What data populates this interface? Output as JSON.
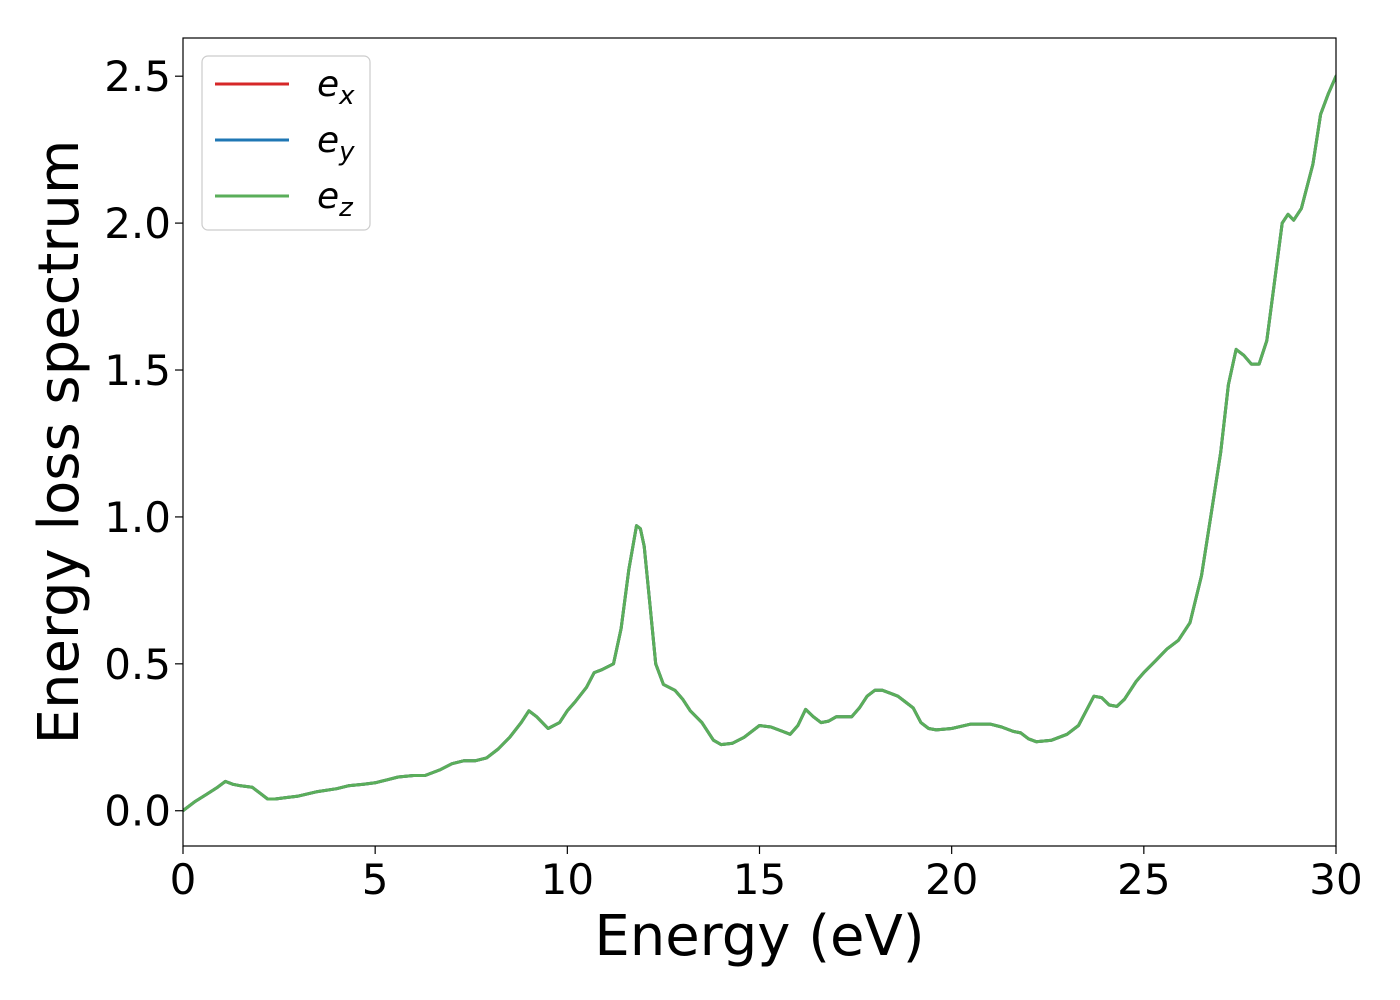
{
  "chart_data": {
    "type": "line",
    "xlabel": "Energy (eV)",
    "ylabel": "Energy loss spectrum",
    "xlim": [
      0,
      30
    ],
    "ylim": [
      -0.12,
      2.63
    ],
    "xticks": [
      0,
      5,
      10,
      15,
      20,
      25,
      30
    ],
    "xtick_labels": [
      "0",
      "5",
      "10",
      "15",
      "20",
      "25",
      "30"
    ],
    "yticks": [
      0.0,
      0.5,
      1.0,
      1.5,
      2.0,
      2.5
    ],
    "ytick_labels": [
      "0.0",
      "0.5",
      "1.0",
      "1.5",
      "2.0",
      "2.5"
    ],
    "grid": false,
    "legend_position": "top-left",
    "x": [
      0,
      0.3,
      0.6,
      0.9,
      1.1,
      1.3,
      1.5,
      1.8,
      2.0,
      2.2,
      2.4,
      2.7,
      3.0,
      3.5,
      4.0,
      4.3,
      4.7,
      5.0,
      5.3,
      5.6,
      6.0,
      6.3,
      6.7,
      7.0,
      7.3,
      7.6,
      7.9,
      8.2,
      8.5,
      8.8,
      9.0,
      9.2,
      9.5,
      9.8,
      10.0,
      10.2,
      10.5,
      10.7,
      10.9,
      11.2,
      11.4,
      11.6,
      11.8,
      11.9,
      12.0,
      12.15,
      12.3,
      12.5,
      12.8,
      13.0,
      13.2,
      13.5,
      13.8,
      14.0,
      14.3,
      14.6,
      15.0,
      15.3,
      15.6,
      15.8,
      16.0,
      16.2,
      16.4,
      16.6,
      16.8,
      17.0,
      17.2,
      17.4,
      17.6,
      17.8,
      18.0,
      18.2,
      18.4,
      18.6,
      18.8,
      19.0,
      19.2,
      19.4,
      19.6,
      20.0,
      20.5,
      21.0,
      21.3,
      21.6,
      21.8,
      22.0,
      22.2,
      22.6,
      23.0,
      23.3,
      23.5,
      23.7,
      23.9,
      24.1,
      24.3,
      24.5,
      24.8,
      25.0,
      25.3,
      25.6,
      25.9,
      26.2,
      26.5,
      26.8,
      27.0,
      27.2,
      27.4,
      27.6,
      27.8,
      28.0,
      28.2,
      28.4,
      28.6,
      28.75,
      28.9,
      29.1,
      29.4,
      29.6,
      29.8,
      30.0
    ],
    "series": [
      {
        "name": "e_x",
        "color": "#d62728",
        "values": [
          0.0,
          0.03,
          0.055,
          0.08,
          0.1,
          0.09,
          0.085,
          0.08,
          0.06,
          0.04,
          0.04,
          0.045,
          0.05,
          0.065,
          0.075,
          0.085,
          0.09,
          0.095,
          0.105,
          0.115,
          0.12,
          0.12,
          0.14,
          0.16,
          0.17,
          0.17,
          0.18,
          0.21,
          0.25,
          0.3,
          0.34,
          0.32,
          0.28,
          0.3,
          0.34,
          0.37,
          0.42,
          0.47,
          0.48,
          0.5,
          0.62,
          0.82,
          0.97,
          0.96,
          0.9,
          0.7,
          0.5,
          0.43,
          0.41,
          0.38,
          0.34,
          0.3,
          0.24,
          0.225,
          0.23,
          0.25,
          0.29,
          0.285,
          0.27,
          0.26,
          0.29,
          0.345,
          0.32,
          0.3,
          0.305,
          0.32,
          0.32,
          0.32,
          0.35,
          0.39,
          0.41,
          0.41,
          0.4,
          0.39,
          0.37,
          0.35,
          0.3,
          0.28,
          0.275,
          0.28,
          0.295,
          0.295,
          0.285,
          0.27,
          0.265,
          0.245,
          0.235,
          0.24,
          0.26,
          0.29,
          0.34,
          0.39,
          0.385,
          0.36,
          0.355,
          0.38,
          0.44,
          0.47,
          0.51,
          0.55,
          0.58,
          0.64,
          0.8,
          1.05,
          1.22,
          1.45,
          1.57,
          1.55,
          1.52,
          1.52,
          1.6,
          1.8,
          2.0,
          2.03,
          2.01,
          2.05,
          2.2,
          2.37,
          2.44,
          2.5
        ]
      },
      {
        "name": "e_y",
        "color": "#1f77b4",
        "values": [
          0.0,
          0.03,
          0.055,
          0.08,
          0.1,
          0.09,
          0.085,
          0.08,
          0.06,
          0.04,
          0.04,
          0.045,
          0.05,
          0.065,
          0.075,
          0.085,
          0.09,
          0.095,
          0.105,
          0.115,
          0.12,
          0.12,
          0.14,
          0.16,
          0.17,
          0.17,
          0.18,
          0.21,
          0.25,
          0.3,
          0.34,
          0.32,
          0.28,
          0.3,
          0.34,
          0.37,
          0.42,
          0.47,
          0.48,
          0.5,
          0.62,
          0.82,
          0.97,
          0.96,
          0.9,
          0.7,
          0.5,
          0.43,
          0.41,
          0.38,
          0.34,
          0.3,
          0.24,
          0.225,
          0.23,
          0.25,
          0.29,
          0.285,
          0.27,
          0.26,
          0.29,
          0.345,
          0.32,
          0.3,
          0.305,
          0.32,
          0.32,
          0.32,
          0.35,
          0.39,
          0.41,
          0.41,
          0.4,
          0.39,
          0.37,
          0.35,
          0.3,
          0.28,
          0.275,
          0.28,
          0.295,
          0.295,
          0.285,
          0.27,
          0.265,
          0.245,
          0.235,
          0.24,
          0.26,
          0.29,
          0.34,
          0.39,
          0.385,
          0.36,
          0.355,
          0.38,
          0.44,
          0.47,
          0.51,
          0.55,
          0.58,
          0.64,
          0.8,
          1.05,
          1.22,
          1.45,
          1.57,
          1.55,
          1.52,
          1.52,
          1.6,
          1.8,
          2.0,
          2.03,
          2.01,
          2.05,
          2.2,
          2.37,
          2.44,
          2.5
        ]
      },
      {
        "name": "e_z",
        "color": "#5aae5a",
        "values": [
          0.0,
          0.03,
          0.055,
          0.08,
          0.1,
          0.09,
          0.085,
          0.08,
          0.06,
          0.04,
          0.04,
          0.045,
          0.05,
          0.065,
          0.075,
          0.085,
          0.09,
          0.095,
          0.105,
          0.115,
          0.12,
          0.12,
          0.14,
          0.16,
          0.17,
          0.17,
          0.18,
          0.21,
          0.25,
          0.3,
          0.34,
          0.32,
          0.28,
          0.3,
          0.34,
          0.37,
          0.42,
          0.47,
          0.48,
          0.5,
          0.62,
          0.82,
          0.97,
          0.96,
          0.9,
          0.7,
          0.5,
          0.43,
          0.41,
          0.38,
          0.34,
          0.3,
          0.24,
          0.225,
          0.23,
          0.25,
          0.29,
          0.285,
          0.27,
          0.26,
          0.29,
          0.345,
          0.32,
          0.3,
          0.305,
          0.32,
          0.32,
          0.32,
          0.35,
          0.39,
          0.41,
          0.41,
          0.4,
          0.39,
          0.37,
          0.35,
          0.3,
          0.28,
          0.275,
          0.28,
          0.295,
          0.295,
          0.285,
          0.27,
          0.265,
          0.245,
          0.235,
          0.24,
          0.26,
          0.29,
          0.34,
          0.39,
          0.385,
          0.36,
          0.355,
          0.38,
          0.44,
          0.47,
          0.51,
          0.55,
          0.58,
          0.64,
          0.8,
          1.05,
          1.22,
          1.45,
          1.57,
          1.55,
          1.52,
          1.52,
          1.6,
          1.8,
          2.0,
          2.03,
          2.01,
          2.05,
          2.2,
          2.37,
          2.44,
          2.5
        ]
      }
    ],
    "legend": [
      {
        "base": "e",
        "sub": "x",
        "color": "#d62728"
      },
      {
        "base": "e",
        "sub": "y",
        "color": "#1f77b4"
      },
      {
        "base": "e",
        "sub": "z",
        "color": "#5aae5a"
      }
    ]
  }
}
